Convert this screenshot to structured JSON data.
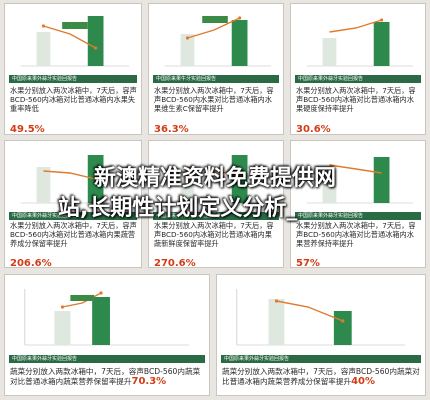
{
  "cards": [
    {
      "badge": "",
      "title": "中国原来果外蒜牙实验回报告",
      "desc": "水果分别放入两次冰箱中，7天后，容声BCD-560内冰箱对比普通冰箱内水果失重率降低",
      "pct": "49.5%"
    },
    {
      "badge": "",
      "title": "中国原来果牛牙实验回报告",
      "desc": "水果分别放入两次冰箱中，7天后，容声BCD-560内水果对比普通冰箱内水果维生素C保留率提升",
      "pct": "36.3%"
    },
    {
      "badge": "",
      "title": "中国原来果外蒜牙实验回报告",
      "desc": "水果分别放入两次冰箱中，7天后，容声BCD-560内冰箱对比普通冰箱内水果硬度保持率提升",
      "pct": "30.6%"
    },
    {
      "badge": "",
      "title": "中国原来果外蒜牙实验回报告",
      "desc": "水果分别放入两次冰箱中，7天后，容声BCD-560内冰箱对比普通冰箱内果蔬营养成分保留率提升",
      "pct": "206.6%"
    },
    {
      "badge": "",
      "title": "中国原来果外蒜牙实验回报告",
      "desc": "水果分别放入两次冰箱中，7天后，容声BCD-560内冰箱对比普通冰箱内果蔬新鲜度保留率提升",
      "pct": "270.6%"
    },
    {
      "badge": "",
      "title": "中国原来果外蒜牙实验回报告",
      "desc": "水果分别放入两次冰箱中，7天后，容声BCD-560内冰箱对比普通冰箱内水果营养保持率提升",
      "pct": "57%"
    },
    {
      "badge": "",
      "title": "中国原来果外蒜牙实验回报告",
      "desc": "蔬菜分别放入两款冰箱中，7天后，容声BCD-560内蔬菜对比普通冰箱内蔬菜营养保留率提升",
      "pct": "70.3%"
    },
    {
      "badge": "",
      "title": "中国原来果外蒜牙实验回报告",
      "desc": "蔬菜分别放入两款冰箱中，7天后，容声BCD-560内蔬菜对比普通冰箱内蔬菜营养成分保留率提升",
      "pct": "40%"
    }
  ],
  "overlay": {
    "line1": "新澳精准资料免费提供网",
    "line2": "站,长期性计划定义分析_"
  },
  "colors": {
    "green": "#2a6a45",
    "orange": "#e07a2c",
    "red": "#d23d18"
  }
}
